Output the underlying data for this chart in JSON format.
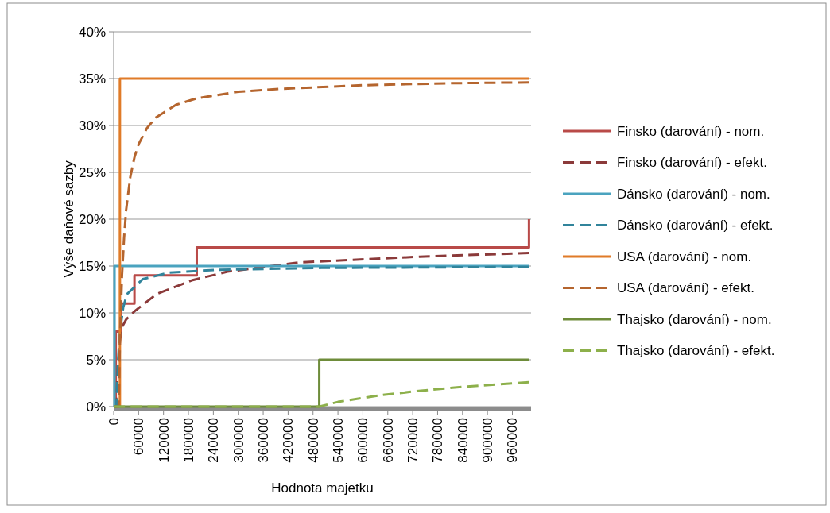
{
  "chart_data": {
    "type": "line",
    "xlabel": "Hodnota majetku",
    "ylabel": "Výše daňové sazby",
    "xlim": [
      0,
      1005000
    ],
    "xticks": [
      0,
      60000,
      120000,
      180000,
      240000,
      300000,
      360000,
      420000,
      480000,
      540000,
      600000,
      660000,
      720000,
      780000,
      840000,
      900000,
      960000
    ],
    "ylim": [
      0,
      40
    ],
    "yticks": [
      {
        "value": 0,
        "label": "0%"
      },
      {
        "value": 5,
        "label": "5%"
      },
      {
        "value": 10,
        "label": "10%"
      },
      {
        "value": 15,
        "label": "15%"
      },
      {
        "value": 20,
        "label": "20%"
      },
      {
        "value": 25,
        "label": "25%"
      },
      {
        "value": 30,
        "label": "30%"
      },
      {
        "value": 35,
        "label": "35%"
      },
      {
        "value": 40,
        "label": "40%"
      }
    ],
    "grid": "y",
    "legend": "right",
    "marker": "none",
    "series": [
      {
        "name": "Finsko (darování) - nom.",
        "color": "#b94a48",
        "line_style": "solid",
        "x": [
          0,
          5000,
          5000,
          17000,
          17000,
          50000,
          50000,
          200000,
          200000,
          1000000,
          1000000
        ],
        "values": [
          0,
          0,
          8,
          8,
          11,
          11,
          14,
          14,
          17,
          17,
          20
        ]
      },
      {
        "name": "Finsko (darování) - efekt.",
        "color": "#8b3a3a",
        "line_style": "dashed",
        "x": [
          0,
          5000,
          10000,
          15000,
          19000,
          30000,
          51000,
          103000,
          190000,
          274000,
          451000,
          737000,
          1000000
        ],
        "values": [
          0,
          0,
          4,
          7,
          8.4,
          9.3,
          10.2,
          12,
          13.5,
          14.4,
          15.4,
          16,
          16.4
        ]
      },
      {
        "name": "Dánsko (darování) - nom.",
        "color": "#4aa3bf",
        "line_style": "solid",
        "x": [
          0,
          2000,
          2000,
          1000000
        ],
        "values": [
          0,
          0,
          15,
          15
        ]
      },
      {
        "name": "Dánsko (darování) - efekt.",
        "color": "#31849b",
        "line_style": "dashed",
        "x": [
          0,
          7000,
          10000,
          15000,
          23000,
          32000,
          70000,
          133000,
          248000,
          500000,
          1000000
        ],
        "values": [
          0,
          0,
          4.5,
          8,
          10.6,
          12,
          13.6,
          14.3,
          14.6,
          14.8,
          14.9
        ]
      },
      {
        "name": "USA (darování) - nom.",
        "color": "#e07b28",
        "line_style": "solid",
        "x": [
          15000,
          15000,
          1000000
        ],
        "values": [
          0,
          35,
          35
        ]
      },
      {
        "name": "USA (darování) - efekt.",
        "color": "#b5652e",
        "line_style": "dashed",
        "x": [
          0,
          12000,
          15000,
          20000,
          25000,
          30000,
          40000,
          50000,
          60000,
          80000,
          100000,
          150000,
          200000,
          300000,
          400000,
          600000,
          800000,
          1000000
        ],
        "values": [
          0,
          0,
          7,
          14,
          18,
          21,
          24.5,
          26.6,
          28,
          29.7,
          30.8,
          32.2,
          32.9,
          33.6,
          33.9,
          34.3,
          34.5,
          34.6
        ]
      },
      {
        "name": "Thajsko (darování) - nom.",
        "color": "#6e8c3a",
        "line_style": "solid",
        "x": [
          0,
          495000,
          495000,
          1000000
        ],
        "values": [
          0,
          0,
          5,
          5
        ]
      },
      {
        "name": "Thajsko (darování) - efekt.",
        "color": "#8db04b",
        "line_style": "dashed",
        "x": [
          0,
          495000,
          540000,
          640000,
          740000,
          840000,
          1000000
        ],
        "values": [
          0,
          0,
          0.5,
          1.2,
          1.7,
          2.1,
          2.6
        ]
      }
    ]
  }
}
